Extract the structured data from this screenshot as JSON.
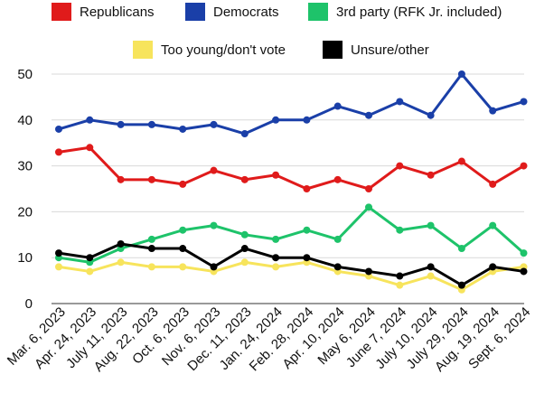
{
  "chart_data": {
    "type": "line",
    "title": "",
    "xlabel": "",
    "ylabel": "",
    "ylim": [
      0,
      50
    ],
    "yticks": [
      0,
      10,
      20,
      30,
      40,
      50
    ],
    "grid": true,
    "legend_placement": "top",
    "categories": [
      "Mar. 6, 2023",
      "Apr. 24, 2023",
      "July 11, 2023",
      "Aug. 22, 2023",
      "Oct. 6, 2023",
      "Nov. 6, 2023",
      "Dec. 11, 2023",
      "Jan. 24, 2024",
      "Feb. 28, 2024",
      "Apr. 10, 2024",
      "May 6, 2024",
      "June 7, 2024",
      "July 10, 2024",
      "July 29, 2024",
      "Aug. 19, 2024",
      "Sept. 6, 2024"
    ],
    "series": [
      {
        "name": "Republicans",
        "color": "#e01b1b",
        "values": [
          33,
          34,
          27,
          27,
          26,
          29,
          27,
          28,
          25,
          27,
          25,
          30,
          28,
          31,
          26,
          30
        ]
      },
      {
        "name": "Democrats",
        "color": "#1a3fa8",
        "values": [
          38,
          40,
          39,
          39,
          38,
          39,
          37,
          40,
          40,
          43,
          41,
          44,
          41,
          50,
          42,
          44
        ]
      },
      {
        "name": "3rd party (RFK Jr. included)",
        "color": "#1ec36a",
        "values": [
          10,
          9,
          12,
          14,
          16,
          17,
          15,
          14,
          16,
          14,
          21,
          16,
          17,
          12,
          17,
          11
        ]
      },
      {
        "name": "Too young/don't vote",
        "color": "#f7e45c",
        "values": [
          8,
          7,
          9,
          8,
          8,
          7,
          9,
          8,
          9,
          7,
          6,
          4,
          6,
          3,
          7,
          8
        ]
      },
      {
        "name": "Unsure/other",
        "color": "#000000",
        "values": [
          11,
          10,
          13,
          12,
          12,
          8,
          12,
          10,
          10,
          8,
          7,
          6,
          8,
          4,
          8,
          7
        ]
      }
    ]
  }
}
